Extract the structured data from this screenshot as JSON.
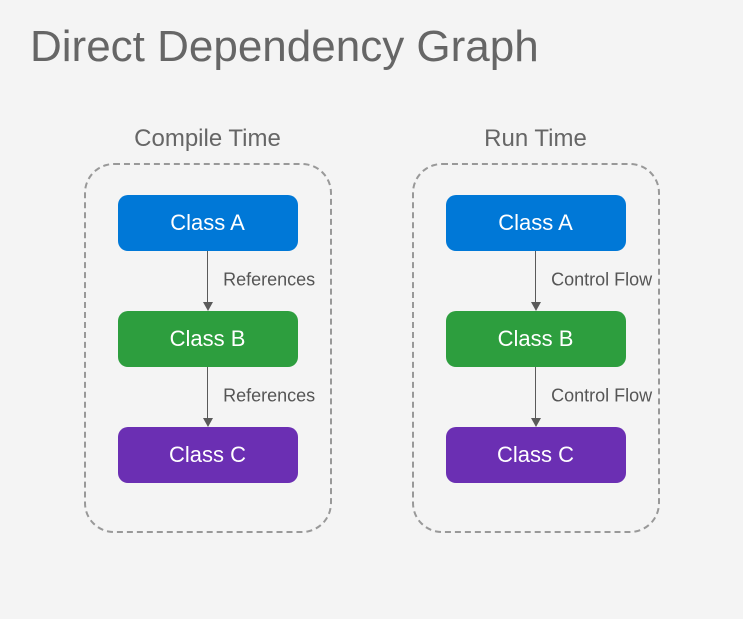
{
  "title": {
    "text": "Direct Dependency Graph",
    "fontsize": 44,
    "color": "#666666"
  },
  "background_color": "#f4f4f4",
  "panel_border": {
    "color": "#999999",
    "width": 2,
    "radius": 30,
    "dash": "6 6"
  },
  "node_style": {
    "width": 180,
    "height": 56,
    "radius": 10,
    "fontsize": 22,
    "text_color": "#ffffff"
  },
  "arrow_style": {
    "line_color": "#5a5a5a",
    "line_height": 52,
    "head_size": 9,
    "label_fontsize": 18,
    "label_color": "#555555"
  },
  "panel_title_style": {
    "fontsize": 24,
    "color": "#666666"
  },
  "panels": [
    {
      "title": "Compile Time",
      "nodes": [
        {
          "label": "Class A",
          "color": "#0078d7"
        },
        {
          "label": "Class B",
          "color": "#2d9e3e"
        },
        {
          "label": "Class C",
          "color": "#6b2fb3"
        }
      ],
      "edges": [
        {
          "label": "References"
        },
        {
          "label": "References"
        }
      ]
    },
    {
      "title": "Run Time",
      "nodes": [
        {
          "label": "Class A",
          "color": "#0078d7"
        },
        {
          "label": "Class B",
          "color": "#2d9e3e"
        },
        {
          "label": "Class C",
          "color": "#6b2fb3"
        }
      ],
      "edges": [
        {
          "label": "Control Flow"
        },
        {
          "label": "Control Flow"
        }
      ]
    }
  ]
}
